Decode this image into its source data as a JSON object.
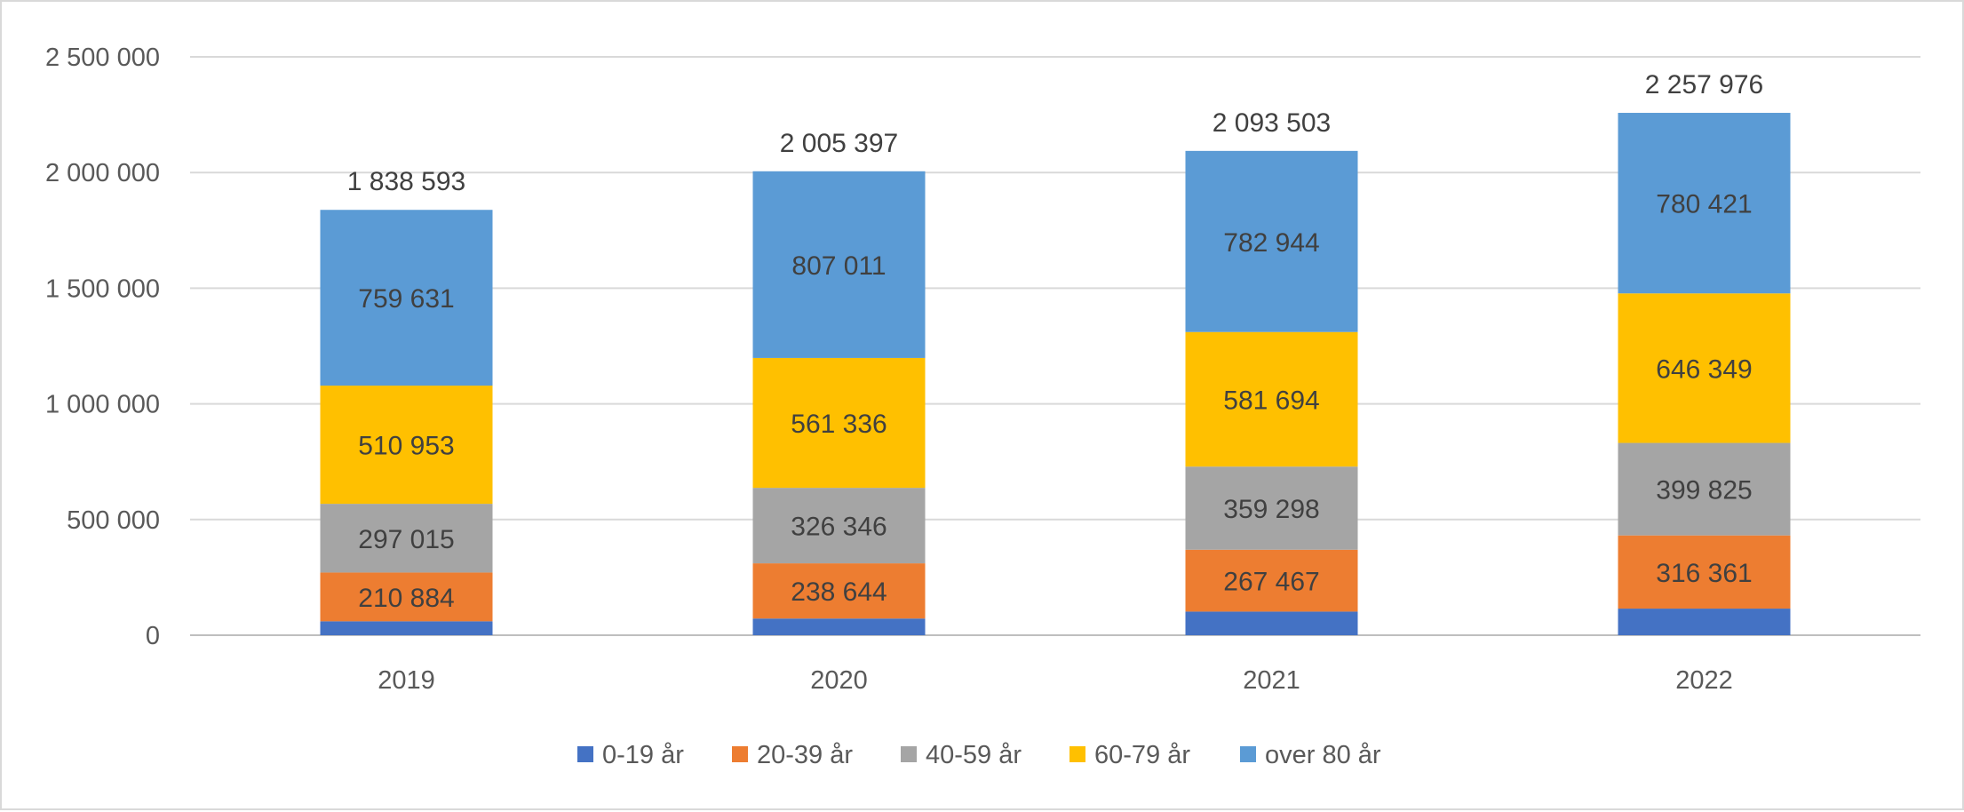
{
  "chart_data": {
    "type": "bar",
    "stacked": true,
    "title": "",
    "xlabel": "",
    "ylabel": "",
    "categories": [
      "2019",
      "2020",
      "2021",
      "2022"
    ],
    "ylim": [
      0,
      2500000
    ],
    "yticks": [
      0,
      500000,
      1000000,
      1500000,
      2000000,
      2500000
    ],
    "ytick_labels": [
      "0",
      "500 000",
      "1 000 000",
      "1 500 000",
      "2 000 000",
      "2 500 000"
    ],
    "grid": true,
    "legend_position": "bottom",
    "series": [
      {
        "name": "0-19 år",
        "color": "#4472C4",
        "values": [
          60110,
          72060,
          102100,
          115020
        ],
        "show_labels": false
      },
      {
        "name": "20-39 år",
        "color": "#ED7D31",
        "values": [
          210884,
          238644,
          267467,
          316361
        ],
        "labels": [
          "210 884",
          "238 644",
          "267 467",
          "316 361"
        ]
      },
      {
        "name": "40-59 år",
        "color": "#A5A5A5",
        "values": [
          297015,
          326346,
          359298,
          399825
        ],
        "labels": [
          "297 015",
          "326 346",
          "359 298",
          "399 825"
        ]
      },
      {
        "name": "60-79 år",
        "color": "#FFC000",
        "values": [
          510953,
          561336,
          581694,
          646349
        ],
        "labels": [
          "510 953",
          "561 336",
          "581 694",
          "646 349"
        ]
      },
      {
        "name": "over 80 år",
        "color": "#5B9BD5",
        "values": [
          759631,
          807011,
          782944,
          780421
        ],
        "labels": [
          "759 631",
          "807 011",
          "782 944",
          "780 421"
        ]
      }
    ],
    "totals": [
      1838593,
      2005397,
      2093503,
      2257976
    ],
    "total_labels": [
      "1 838 593",
      "2 005 397",
      "2 093 503",
      "2 257 976"
    ]
  }
}
